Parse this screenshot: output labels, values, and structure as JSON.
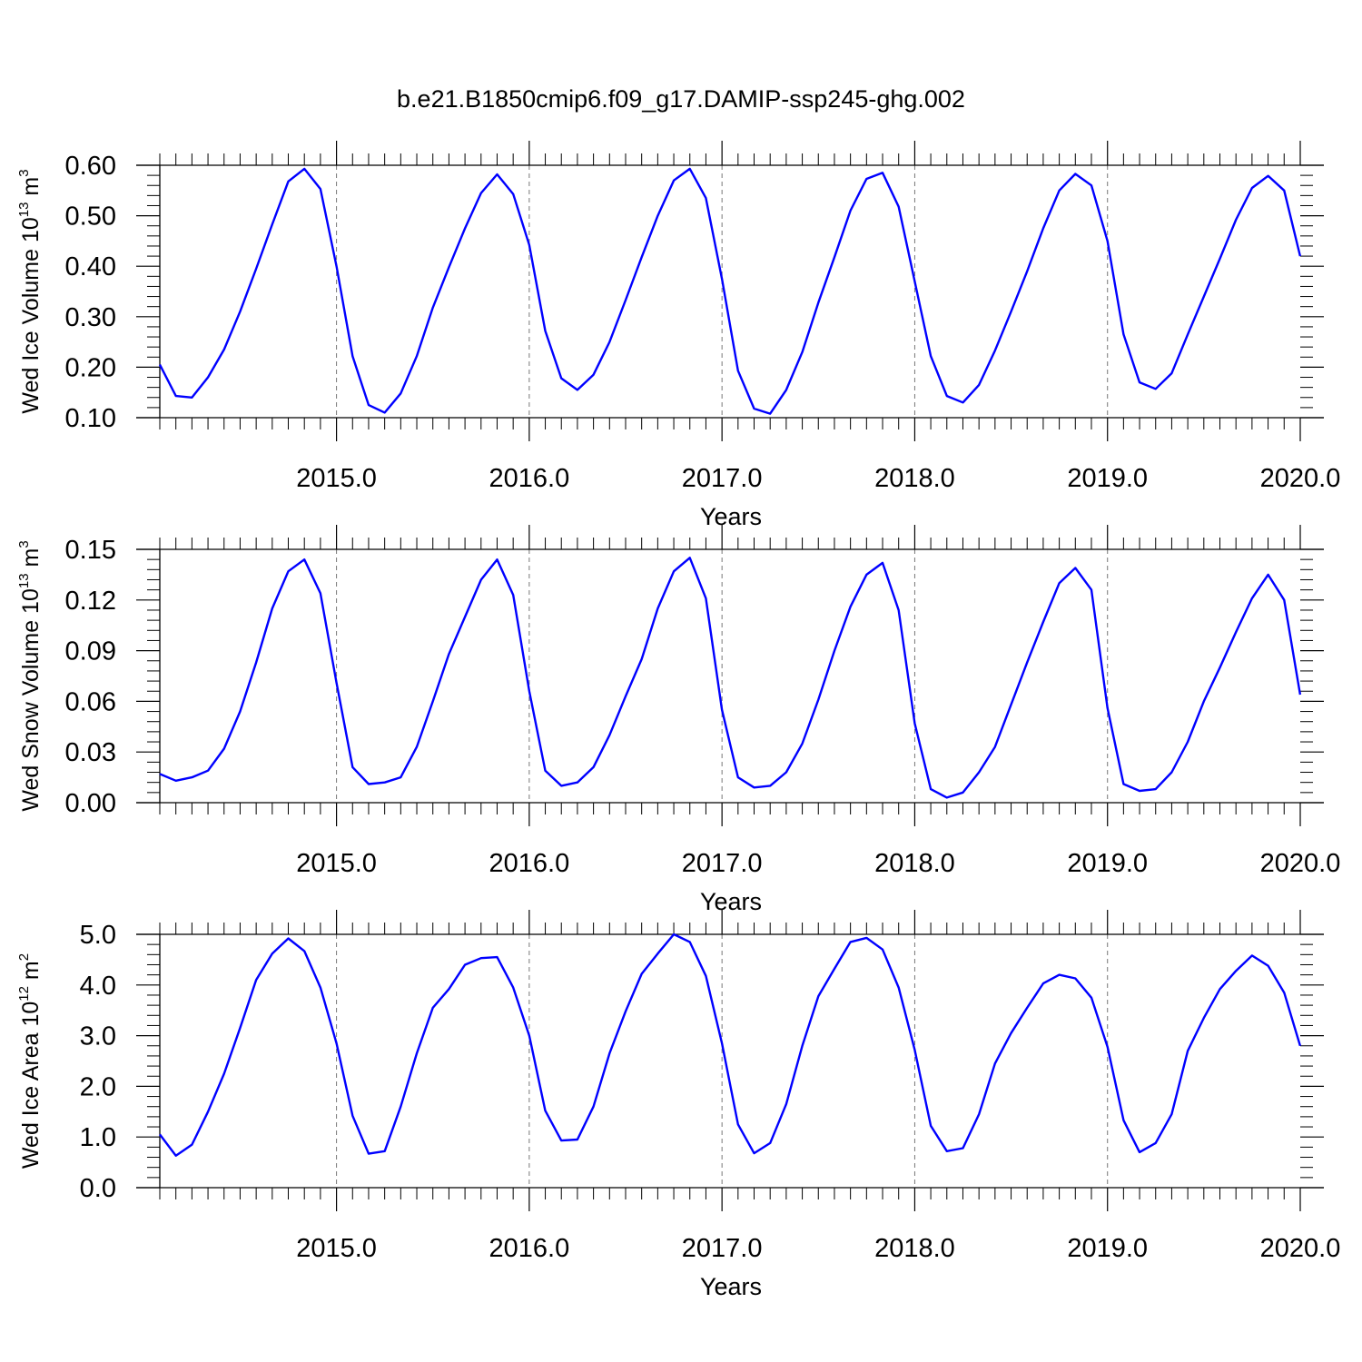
{
  "figure": {
    "title": "b.e21.B1850cmip6.f09_g17.DAMIP-ssp245-ghg.002"
  },
  "chart_data": [
    {
      "type": "line",
      "title": "b.e21.B1850cmip6.f09_g17.DAMIP-ssp245-ghg.002",
      "xlabel": "Years",
      "ylabel": {
        "text": "Wed Ice Volume 10",
        "exponent": "13",
        "unit": " m",
        "unit_exponent": "3"
      },
      "xlim": [
        2014.0833,
        2020.0
      ],
      "ylim": [
        0.1,
        0.6
      ],
      "yticks": [
        0.1,
        0.2,
        0.3,
        0.4,
        0.5,
        0.6
      ],
      "ytick_labels": [
        "0.10",
        "0.20",
        "0.30",
        "0.40",
        "0.50",
        "0.60"
      ],
      "xticks": [
        2015,
        2016,
        2017,
        2018,
        2019,
        2020
      ],
      "xtick_labels": [
        "2015.0",
        "2016.0",
        "2017.0",
        "2018.0",
        "2019.0",
        "2020.0"
      ],
      "grid": "vertical dashed at year marks",
      "color": "#0000ff",
      "x_start": 2014.0833,
      "x_step": 0.08333,
      "values": [
        0.205,
        0.143,
        0.14,
        0.18,
        0.235,
        0.31,
        0.395,
        0.483,
        0.568,
        0.593,
        0.553,
        0.4,
        0.222,
        0.125,
        0.11,
        0.148,
        0.222,
        0.318,
        0.398,
        0.475,
        0.545,
        0.582,
        0.543,
        0.442,
        0.272,
        0.178,
        0.155,
        0.185,
        0.25,
        0.333,
        0.418,
        0.5,
        0.57,
        0.593,
        0.535,
        0.375,
        0.193,
        0.118,
        0.108,
        0.155,
        0.23,
        0.328,
        0.418,
        0.51,
        0.573,
        0.585,
        0.518,
        0.37,
        0.222,
        0.143,
        0.13,
        0.165,
        0.233,
        0.31,
        0.39,
        0.475,
        0.55,
        0.583,
        0.56,
        0.45,
        0.265,
        0.17,
        0.157,
        0.188,
        0.265,
        0.34,
        0.415,
        0.492,
        0.555,
        0.579,
        0.55,
        0.42
      ]
    },
    {
      "type": "line",
      "xlabel": "Years",
      "ylabel": {
        "text": "Wed Snow Volume 10",
        "exponent": "13",
        "unit": " m",
        "unit_exponent": "3"
      },
      "xlim": [
        2014.0833,
        2020.0
      ],
      "ylim": [
        0.0,
        0.15
      ],
      "yticks": [
        0.0,
        0.03,
        0.06,
        0.09,
        0.12,
        0.15
      ],
      "ytick_labels": [
        "0.00",
        "0.03",
        "0.06",
        "0.09",
        "0.12",
        "0.15"
      ],
      "xticks": [
        2015,
        2016,
        2017,
        2018,
        2019,
        2020
      ],
      "xtick_labels": [
        "2015.0",
        "2016.0",
        "2017.0",
        "2018.0",
        "2019.0",
        "2020.0"
      ],
      "grid": "vertical dashed at year marks",
      "color": "#0000ff",
      "x_start": 2014.0833,
      "x_step": 0.08333,
      "values": [
        0.017,
        0.013,
        0.015,
        0.019,
        0.032,
        0.054,
        0.083,
        0.115,
        0.137,
        0.144,
        0.124,
        0.071,
        0.021,
        0.011,
        0.012,
        0.015,
        0.033,
        0.06,
        0.088,
        0.11,
        0.132,
        0.144,
        0.123,
        0.066,
        0.019,
        0.01,
        0.012,
        0.021,
        0.04,
        0.063,
        0.085,
        0.115,
        0.137,
        0.145,
        0.121,
        0.055,
        0.015,
        0.009,
        0.01,
        0.018,
        0.035,
        0.061,
        0.09,
        0.116,
        0.135,
        0.142,
        0.114,
        0.047,
        0.008,
        0.003,
        0.006,
        0.018,
        0.033,
        0.058,
        0.083,
        0.107,
        0.13,
        0.139,
        0.126,
        0.056,
        0.011,
        0.007,
        0.008,
        0.018,
        0.036,
        0.06,
        0.08,
        0.101,
        0.121,
        0.135,
        0.12,
        0.064
      ]
    },
    {
      "type": "line",
      "xlabel": "Years",
      "ylabel": {
        "text": "Wed Ice Area 10",
        "exponent": "12",
        "unit": " m",
        "unit_exponent": "2"
      },
      "xlim": [
        2014.0833,
        2020.0
      ],
      "ylim": [
        0.0,
        5.0
      ],
      "yticks": [
        0.0,
        1.0,
        2.0,
        3.0,
        4.0,
        5.0
      ],
      "ytick_labels": [
        "0.0",
        "1.0",
        "2.0",
        "3.0",
        "4.0",
        "5.0"
      ],
      "xticks": [
        2015,
        2016,
        2017,
        2018,
        2019,
        2020
      ],
      "xtick_labels": [
        "2015.0",
        "2016.0",
        "2017.0",
        "2018.0",
        "2019.0",
        "2020.0"
      ],
      "grid": "vertical dashed at year marks",
      "color": "#0000ff",
      "x_start": 2014.0833,
      "x_step": 0.08333,
      "values": [
        1.05,
        0.63,
        0.85,
        1.5,
        2.25,
        3.15,
        4.1,
        4.62,
        4.92,
        4.67,
        3.95,
        2.85,
        1.42,
        0.67,
        0.72,
        1.6,
        2.65,
        3.55,
        3.92,
        4.4,
        4.53,
        4.55,
        3.95,
        3.0,
        1.52,
        0.93,
        0.95,
        1.6,
        2.65,
        3.48,
        4.22,
        4.62,
        5.0,
        4.85,
        4.18,
        2.85,
        1.25,
        0.68,
        0.88,
        1.65,
        2.8,
        3.78,
        4.32,
        4.85,
        4.93,
        4.7,
        3.95,
        2.72,
        1.22,
        0.72,
        0.78,
        1.45,
        2.45,
        3.05,
        3.55,
        4.03,
        4.2,
        4.13,
        3.75,
        2.78,
        1.33,
        0.7,
        0.88,
        1.45,
        2.7,
        3.35,
        3.92,
        4.28,
        4.58,
        4.38,
        3.85,
        2.8
      ]
    }
  ]
}
